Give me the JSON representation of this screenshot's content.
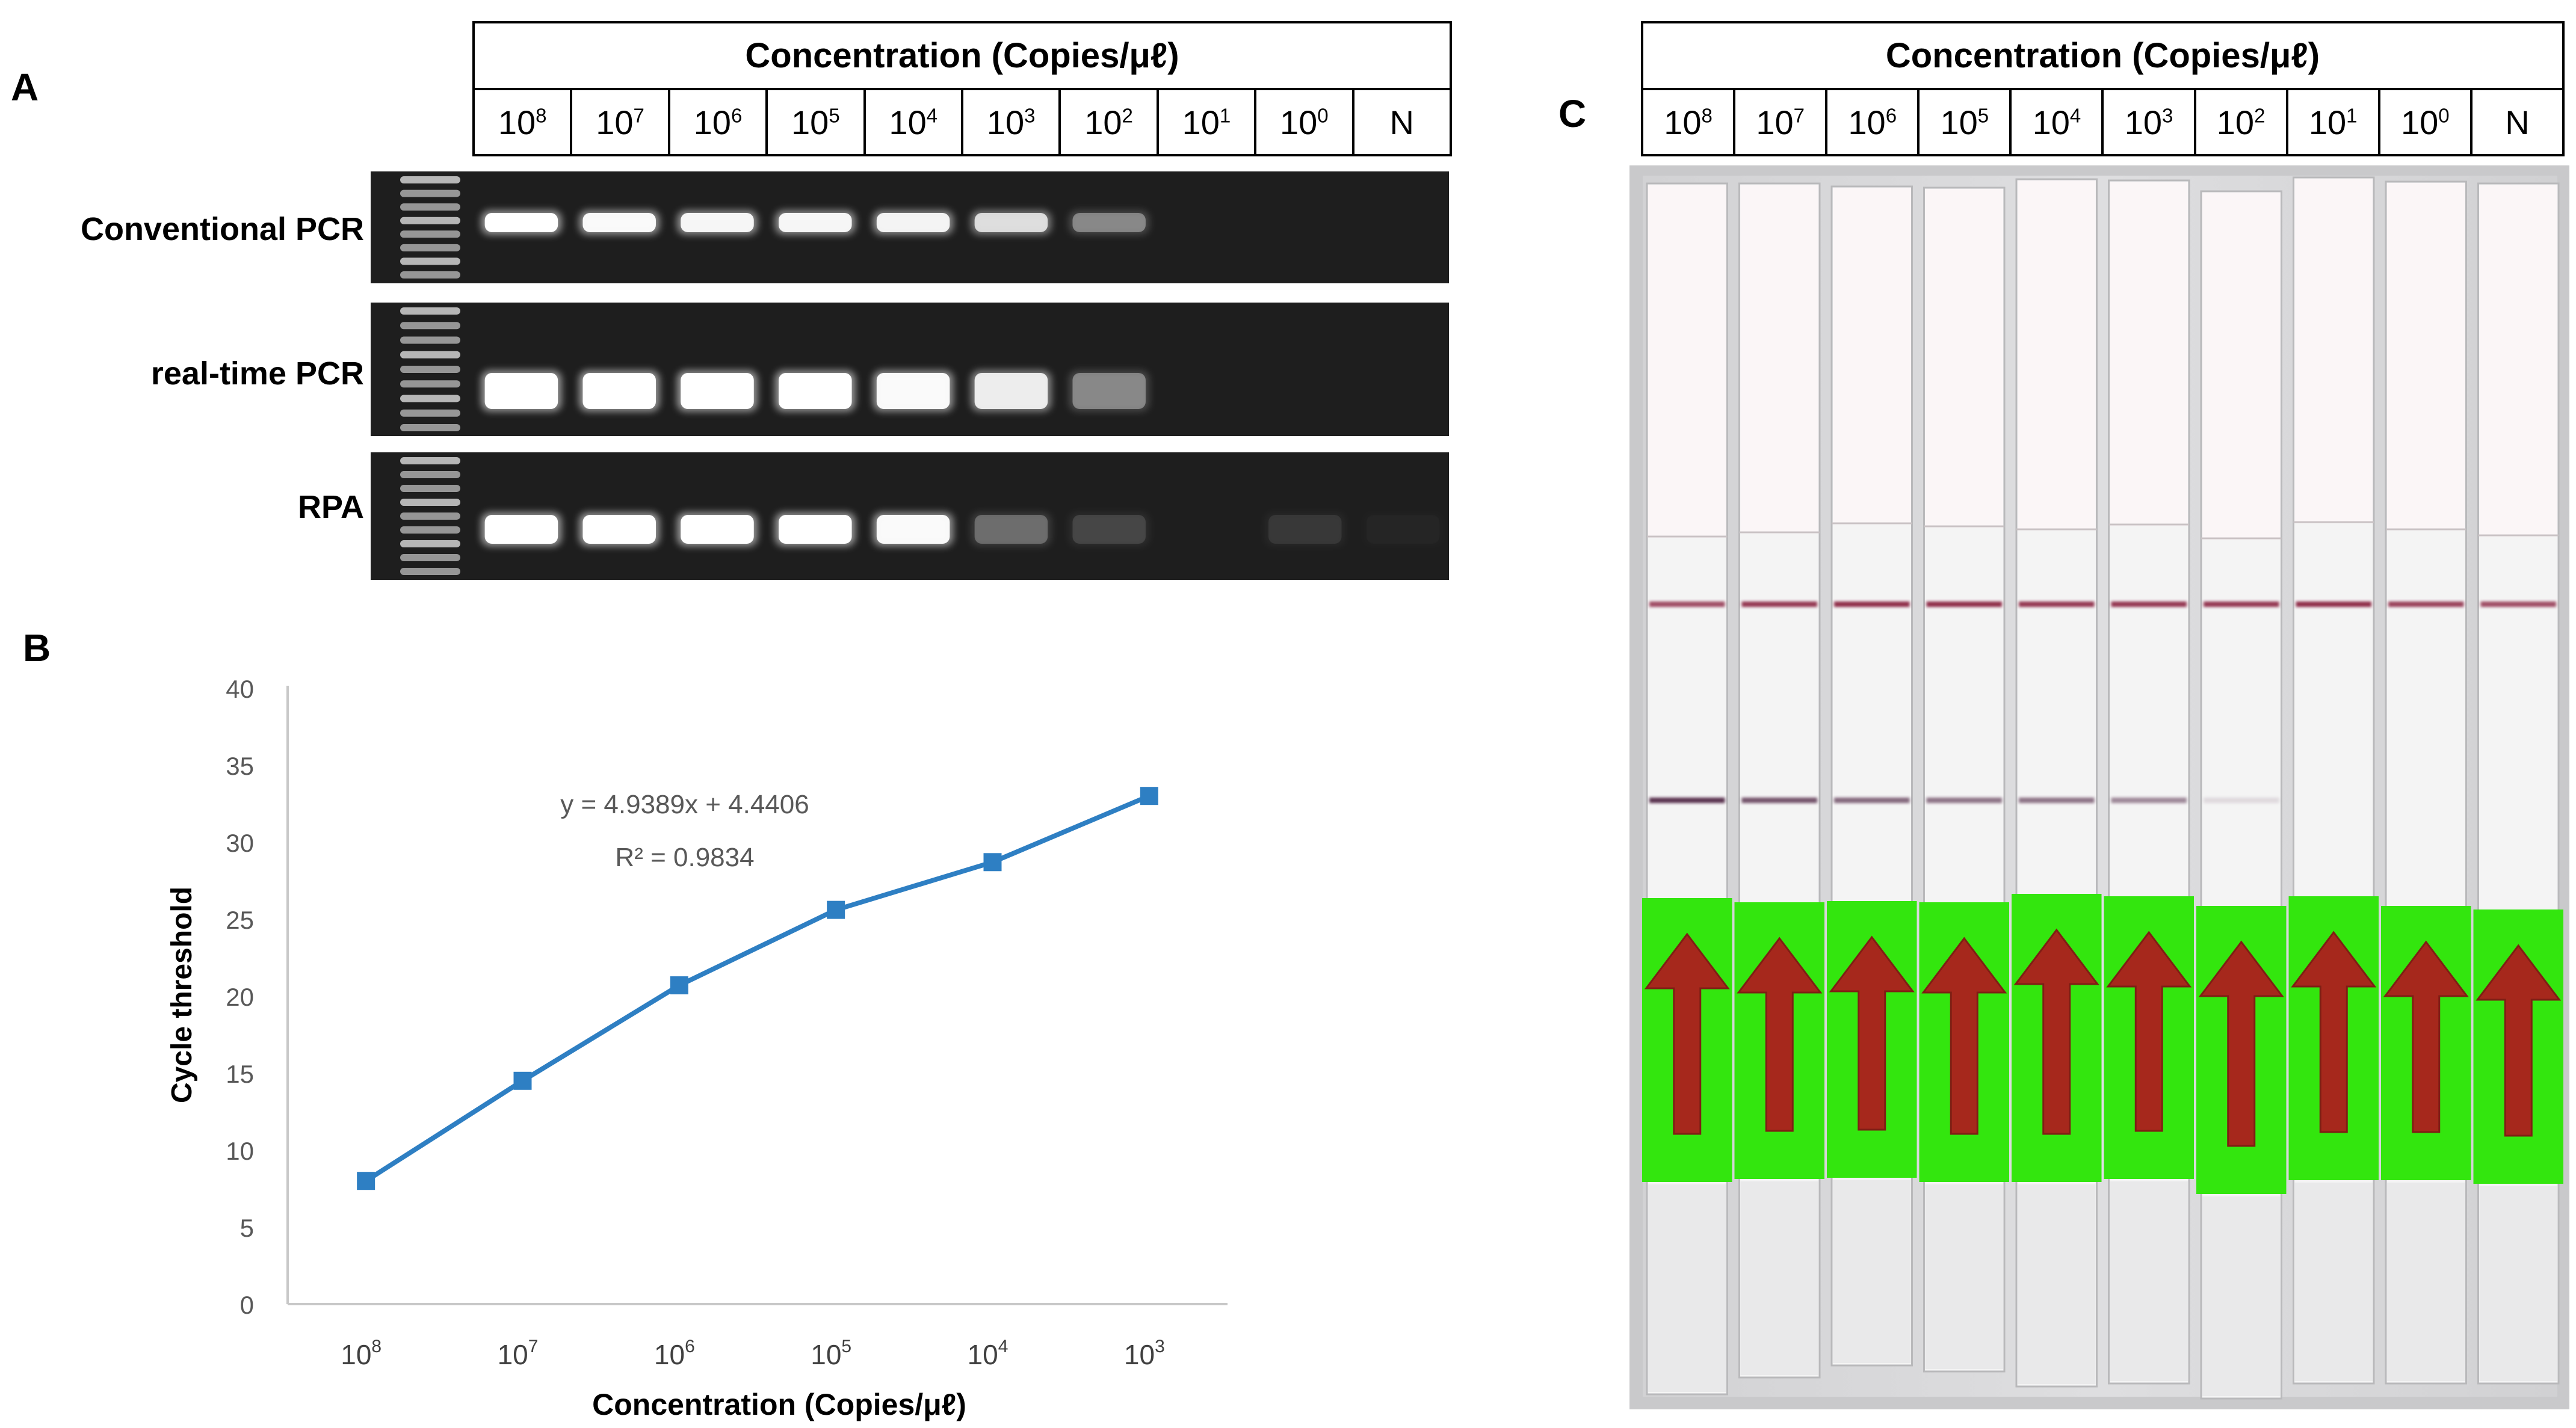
{
  "panels": {
    "a": "A",
    "b": "B",
    "c": "C"
  },
  "concentration_header": "Concentration (Copies/μℓ)",
  "lanes": [
    {
      "base": "10",
      "exp": "8"
    },
    {
      "base": "10",
      "exp": "7"
    },
    {
      "base": "10",
      "exp": "6"
    },
    {
      "base": "10",
      "exp": "5"
    },
    {
      "base": "10",
      "exp": "4"
    },
    {
      "base": "10",
      "exp": "3"
    },
    {
      "base": "10",
      "exp": "2"
    },
    {
      "base": "10",
      "exp": "1"
    },
    {
      "base": "10",
      "exp": "0"
    },
    {
      "base": "N",
      "exp": ""
    }
  ],
  "gel_rows": [
    {
      "label": "Conventional PCR",
      "band_intensity": [
        1.0,
        0.95,
        0.92,
        0.92,
        0.9,
        0.75,
        0.35,
        0,
        0,
        0
      ]
    },
    {
      "label": "real-time PCR",
      "band_intensity": [
        1.0,
        1.0,
        1.0,
        1.0,
        0.95,
        0.85,
        0.35,
        0,
        0,
        0
      ]
    },
    {
      "label": "RPA",
      "band_intensity": [
        1.0,
        1.0,
        1.0,
        1.0,
        0.95,
        0.25,
        0.12,
        0,
        0.08,
        0.02
      ]
    }
  ],
  "chart_data": {
    "type": "line",
    "categories": [
      "10^8",
      "10^7",
      "10^6",
      "10^5",
      "10^4",
      "10^3"
    ],
    "category_labels": [
      {
        "base": "10",
        "exp": "8"
      },
      {
        "base": "10",
        "exp": "7"
      },
      {
        "base": "10",
        "exp": "6"
      },
      {
        "base": "10",
        "exp": "5"
      },
      {
        "base": "10",
        "exp": "4"
      },
      {
        "base": "10",
        "exp": "3"
      }
    ],
    "series": [
      {
        "values": [
          8.0,
          14.5,
          20.7,
          25.6,
          28.7,
          33.0
        ]
      }
    ],
    "xlabel": "Concentration (Copies/μℓ)",
    "ylabel": "Cycle threshold",
    "ylim": [
      0,
      40
    ],
    "yticks": [
      0,
      5,
      10,
      15,
      20,
      25,
      30,
      35,
      40
    ],
    "equation": "y = 4.9389x + 4.4406",
    "r_squared": "R² = 0.9834",
    "grid": false,
    "line_color": "#2e7fc3"
  },
  "strip_test": {
    "control_line_intensity": [
      0.8,
      0.9,
      0.95,
      0.95,
      0.9,
      0.9,
      0.9,
      0.95,
      0.85,
      0.8
    ],
    "test_line_intensity": [
      0.9,
      0.75,
      0.65,
      0.6,
      0.6,
      0.5,
      0.12,
      0,
      0,
      0
    ]
  }
}
